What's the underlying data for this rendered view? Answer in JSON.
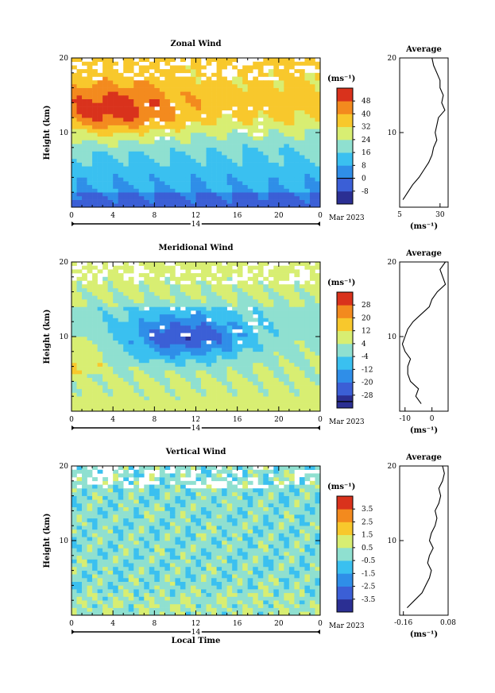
{
  "figure": {
    "date_label": "Mar 2023",
    "day_label": "14",
    "xlabel": "Local Time",
    "ylabel": "Height (km)"
  },
  "chart_data": [
    {
      "type": "heatmap",
      "title": "Zonal Wind",
      "xlabel": "",
      "ylabel": "Height (km)",
      "x_ticks": [
        "0",
        "4",
        "8",
        "12",
        "16",
        "20",
        "0"
      ],
      "y_ticks": [
        "10",
        "20"
      ],
      "xlim": [
        0,
        24
      ],
      "ylim": [
        0,
        20
      ],
      "colorbar": {
        "unit": "(ms⁻¹)",
        "levels": [
          -8,
          0,
          8,
          16,
          24,
          32,
          40,
          48
        ],
        "labels": [
          "-8",
          "0",
          "8",
          "16",
          "24",
          "32",
          "40",
          "48"
        ],
        "zero_line": 0
      },
      "colors": [
        "#2b2f93",
        "#3b5fd6",
        "#2f8ee8",
        "#3ac0f0",
        "#8fe0d0",
        "#d8ee72",
        "#f8c82c",
        "#f38a1e",
        "#d9321c"
      ],
      "avg": {
        "title": "Average",
        "xlabel": "(ms⁻¹)",
        "x_ticks": [
          "5",
          "30"
        ],
        "xlim": [
          5,
          35
        ],
        "y_ticks": [
          "10",
          "20"
        ],
        "height": [
          1,
          2,
          3,
          4,
          5,
          6,
          7,
          8,
          9,
          10,
          11,
          12,
          13,
          14,
          15,
          16,
          17,
          18,
          19,
          20
        ],
        "values": [
          7,
          10,
          13,
          17,
          20,
          23,
          25,
          26,
          28,
          27,
          28,
          29,
          33,
          31,
          32,
          30,
          30,
          28,
          26,
          25
        ]
      }
    },
    {
      "type": "heatmap",
      "title": "Meridional Wind",
      "xlabel": "",
      "ylabel": "Height (km)",
      "x_ticks": [
        "0",
        "4",
        "8",
        "12",
        "16",
        "20",
        "0"
      ],
      "y_ticks": [
        "10",
        "20"
      ],
      "xlim": [
        0,
        24
      ],
      "ylim": [
        0,
        20
      ],
      "colorbar": {
        "unit": "(ms⁻¹)",
        "levels": [
          -28,
          -20,
          -12,
          -4,
          4,
          12,
          20,
          28
        ],
        "labels": [
          "-28",
          "-20",
          "-12",
          "-4",
          "4",
          "12",
          "20",
          "28"
        ],
        "zero_line": 0
      },
      "colors": [
        "#2b2f93",
        "#3b5fd6",
        "#2f8ee8",
        "#3ac0f0",
        "#8fe0d0",
        "#d8ee72",
        "#f8c82c",
        "#f38a1e",
        "#d9321c"
      ],
      "avg": {
        "title": "Average",
        "xlabel": "(ms⁻¹)",
        "x_ticks": [
          "-10",
          "0"
        ],
        "xlim": [
          -12,
          6
        ],
        "y_ticks": [
          "10",
          "20"
        ],
        "height": [
          1,
          2,
          3,
          4,
          5,
          6,
          7,
          8,
          9,
          10,
          11,
          12,
          13,
          14,
          15,
          16,
          17,
          18,
          19,
          20
        ],
        "values": [
          -4,
          -6,
          -5,
          -8,
          -9,
          -9,
          -8,
          -10,
          -11,
          -10,
          -9,
          -7,
          -4,
          -1,
          0,
          2,
          5,
          4,
          3,
          5
        ]
      }
    },
    {
      "type": "heatmap",
      "title": "Vertical Wind",
      "xlabel": "Local Time",
      "ylabel": "Height (km)",
      "x_ticks": [
        "0",
        "4",
        "8",
        "12",
        "16",
        "20",
        "0"
      ],
      "y_ticks": [
        "10",
        "20"
      ],
      "xlim": [
        0,
        24
      ],
      "ylim": [
        0,
        20
      ],
      "colorbar": {
        "unit": "(ms⁻¹)",
        "levels": [
          -3.5,
          -2.5,
          -1.5,
          -0.5,
          0.5,
          1.5,
          2.5,
          3.5
        ],
        "labels": [
          "-3.5",
          "-2.5",
          "-1.5",
          "-0.5",
          "0.5",
          "1.5",
          "2.5",
          "3.5"
        ],
        "zero_line": null
      },
      "colors": [
        "#2b2f93",
        "#3b5fd6",
        "#2f8ee8",
        "#3ac0f0",
        "#8fe0d0",
        "#d8ee72",
        "#f8c82c",
        "#f38a1e",
        "#d9321c"
      ],
      "avg": {
        "title": "Average",
        "xlabel": "(ms⁻¹)",
        "x_ticks": [
          "-0.16",
          "0.08"
        ],
        "xlim": [
          -0.18,
          0.08
        ],
        "y_ticks": [
          "10",
          "20"
        ],
        "height": [
          1,
          2,
          3,
          4,
          5,
          6,
          7,
          8,
          9,
          10,
          11,
          12,
          13,
          14,
          15,
          16,
          17,
          18,
          19,
          20
        ],
        "values": [
          -0.14,
          -0.1,
          -0.06,
          -0.04,
          -0.02,
          -0.01,
          -0.03,
          -0.02,
          0.0,
          -0.02,
          -0.01,
          0.01,
          0.02,
          0.01,
          0.03,
          0.04,
          0.03,
          0.05,
          0.06,
          0.05
        ]
      }
    }
  ]
}
